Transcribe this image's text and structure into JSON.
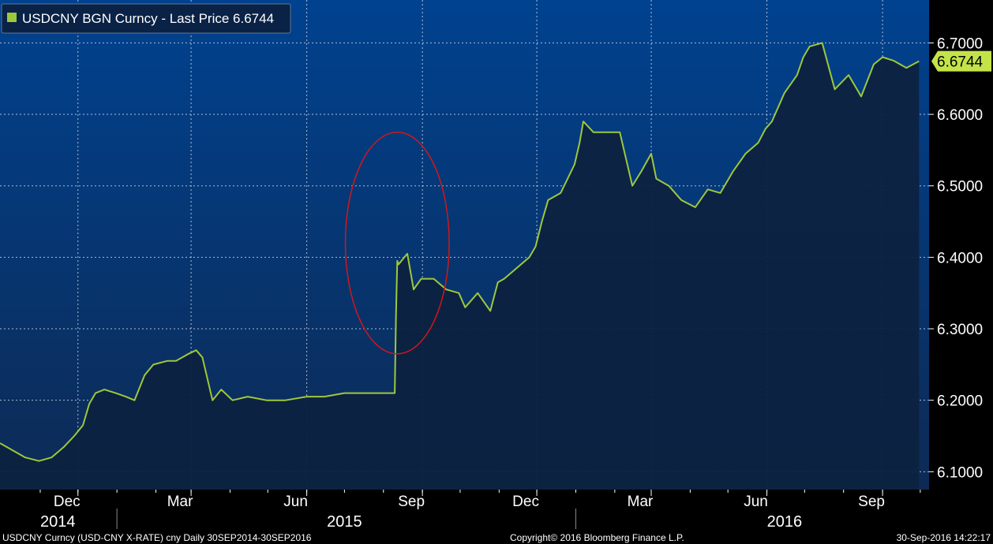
{
  "chart_data": {
    "type": "area",
    "legend": {
      "label": "USDCNY BGN Curncy - Last Price 6.6744",
      "color": "#9dc83c",
      "placement": "top-left"
    },
    "last_price": "6.6744",
    "series": [
      {
        "name": "USDCNY BGN Curncy - Last Price",
        "color": "#9dc83c",
        "x": [
          "2014-09-30",
          "2014-10-10",
          "2014-10-20",
          "2014-10-31",
          "2014-11-10",
          "2014-11-20",
          "2014-11-28",
          "2014-12-05",
          "2014-12-10",
          "2014-12-15",
          "2014-12-22",
          "2014-12-31",
          "2015-01-08",
          "2015-01-15",
          "2015-01-23",
          "2015-01-30",
          "2015-02-10",
          "2015-02-17",
          "2015-02-27",
          "2015-03-05",
          "2015-03-10",
          "2015-03-18",
          "2015-03-25",
          "2015-04-03",
          "2015-04-15",
          "2015-04-30",
          "2015-05-15",
          "2015-06-01",
          "2015-06-15",
          "2015-07-01",
          "2015-07-15",
          "2015-07-31",
          "2015-08-10",
          "2015-08-11",
          "2015-08-12",
          "2015-08-13",
          "2015-08-20",
          "2015-08-25",
          "2015-08-31",
          "2015-09-10",
          "2015-09-20",
          "2015-09-30",
          "2015-10-05",
          "2015-10-15",
          "2015-10-25",
          "2015-10-31",
          "2015-11-05",
          "2015-11-15",
          "2015-11-25",
          "2015-11-30",
          "2015-12-05",
          "2015-12-10",
          "2015-12-15",
          "2015-12-20",
          "2015-12-31",
          "2016-01-04",
          "2016-01-07",
          "2016-01-15",
          "2016-01-25",
          "2016-02-05",
          "2016-02-15",
          "2016-02-22",
          "2016-03-01",
          "2016-03-05",
          "2016-03-15",
          "2016-03-25",
          "2016-04-05",
          "2016-04-15",
          "2016-04-25",
          "2016-05-05",
          "2016-05-15",
          "2016-05-25",
          "2016-05-31",
          "2016-06-05",
          "2016-06-15",
          "2016-06-25",
          "2016-06-30",
          "2016-07-05",
          "2016-07-15",
          "2016-07-25",
          "2016-08-05",
          "2016-08-15",
          "2016-08-25",
          "2016-09-01",
          "2016-09-10",
          "2016-09-20",
          "2016-09-30"
        ],
        "values": [
          6.14,
          6.13,
          6.12,
          6.115,
          6.12,
          6.135,
          6.15,
          6.165,
          6.195,
          6.21,
          6.215,
          6.21,
          6.205,
          6.2,
          6.235,
          6.25,
          6.255,
          6.255,
          6.265,
          6.27,
          6.26,
          6.2,
          6.215,
          6.2,
          6.205,
          6.2,
          6.2,
          6.205,
          6.205,
          6.21,
          6.21,
          6.21,
          6.21,
          6.32,
          6.395,
          6.39,
          6.405,
          6.355,
          6.37,
          6.37,
          6.355,
          6.35,
          6.33,
          6.35,
          6.325,
          6.365,
          6.37,
          6.385,
          6.4,
          6.415,
          6.45,
          6.48,
          6.485,
          6.49,
          6.53,
          6.56,
          6.59,
          6.575,
          6.575,
          6.575,
          6.5,
          6.52,
          6.545,
          6.51,
          6.5,
          6.48,
          6.47,
          6.495,
          6.49,
          6.52,
          6.545,
          6.56,
          6.58,
          6.59,
          6.63,
          6.655,
          6.68,
          6.695,
          6.7,
          6.635,
          6.655,
          6.625,
          6.67,
          6.68,
          6.675,
          6.665,
          6.6744
        ]
      }
    ],
    "x_ticks": [
      {
        "label": "Dec",
        "date": "2014-12-01"
      },
      {
        "label": "Mar",
        "date": "2015-03-01"
      },
      {
        "label": "Jun",
        "date": "2015-06-01"
      },
      {
        "label": "Sep",
        "date": "2015-09-01"
      },
      {
        "label": "Dec",
        "date": "2015-12-01"
      },
      {
        "label": "Mar",
        "date": "2016-03-01"
      },
      {
        "label": "Jun",
        "date": "2016-06-01"
      },
      {
        "label": "Sep",
        "date": "2016-09-01"
      }
    ],
    "year_labels": [
      {
        "label": "2014",
        "date": "2014-11-15"
      },
      {
        "label": "2015",
        "date": "2015-07-01"
      },
      {
        "label": "2016",
        "date": "2016-06-15"
      }
    ],
    "year_boundaries": [
      "2015-01-01",
      "2016-01-01"
    ],
    "y_ticks": [
      "6.1000",
      "6.2000",
      "6.3000",
      "6.4000",
      "6.5000",
      "6.6000",
      "6.7000"
    ],
    "ylim": [
      6.075,
      6.76
    ],
    "xlim": [
      "2014-09-30",
      "2016-10-08"
    ],
    "grid": true,
    "annotation": {
      "type": "ellipse",
      "color": "#d01818",
      "center_date": "2015-08-12",
      "center_value": 6.42,
      "span_days": 28,
      "span_value": 0.31
    }
  },
  "footer": {
    "left": "USDCNY Curncy (USD-CNY X-RATE) cny  Daily 30SEP2014-30SEP2016",
    "center": "Copyright© 2016 Bloomberg Finance L.P.",
    "right": "30-Sep-2016 14:22:17"
  },
  "colors": {
    "background_top": "#01408a",
    "background_bottom": "#0c2c5c",
    "area_fill": "#0d2240",
    "line": "#9dc83c",
    "grid": "#d8e0ec"
  }
}
